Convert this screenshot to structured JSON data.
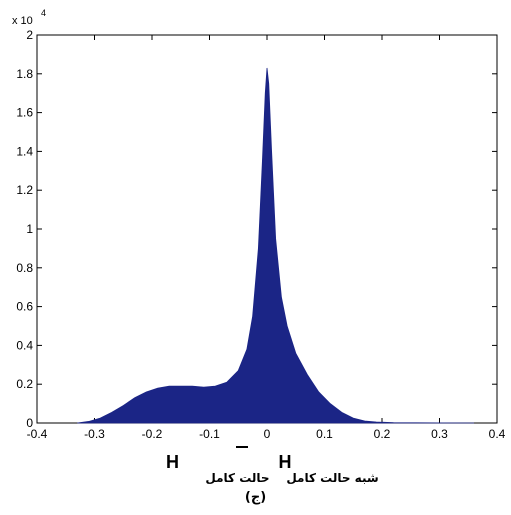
{
  "chart_data": {
    "type": "area",
    "title": "",
    "xlabel": "",
    "ylabel": "",
    "xlim": [
      -0.4,
      0.4
    ],
    "ylim": [
      0,
      20000
    ],
    "y_exponent_label": "x 10",
    "y_exponent_power": "4",
    "x_ticks": [
      "-0.4",
      "-0.3",
      "-0.2",
      "-0.1",
      "0",
      "0.1",
      "0.2",
      "0.3",
      "0.4"
    ],
    "y_ticks": [
      "0",
      "0.2",
      "0.4",
      "0.6",
      "0.8",
      "1",
      "1.2",
      "1.4",
      "1.6",
      "1.8",
      "2"
    ],
    "series": [
      {
        "fill_color": "#1b2586",
        "x": [
          -0.33,
          -0.31,
          -0.29,
          -0.27,
          -0.25,
          -0.23,
          -0.21,
          -0.19,
          -0.17,
          -0.15,
          -0.13,
          -0.11,
          -0.09,
          -0.07,
          -0.05,
          -0.035,
          -0.025,
          -0.015,
          -0.008,
          -0.003,
          0.0,
          0.003,
          0.008,
          0.015,
          0.025,
          0.035,
          0.05,
          0.07,
          0.09,
          0.11,
          0.13,
          0.15,
          0.17,
          0.19,
          0.22,
          0.26,
          0.3,
          0.36
        ],
        "y": [
          0,
          80,
          250,
          550,
          900,
          1300,
          1600,
          1800,
          1900,
          1900,
          1900,
          1850,
          1900,
          2100,
          2700,
          3800,
          5500,
          9000,
          13500,
          17000,
          18300,
          17500,
          14000,
          9500,
          6500,
          5000,
          3600,
          2500,
          1600,
          1000,
          550,
          250,
          100,
          50,
          20,
          10,
          5,
          0
        ]
      }
    ]
  },
  "caption": {
    "h_left": "H",
    "h_right": "H",
    "label_left": "حالت کامل",
    "label_right": "شبه حالت کامل",
    "sublabel": "(ج)"
  }
}
